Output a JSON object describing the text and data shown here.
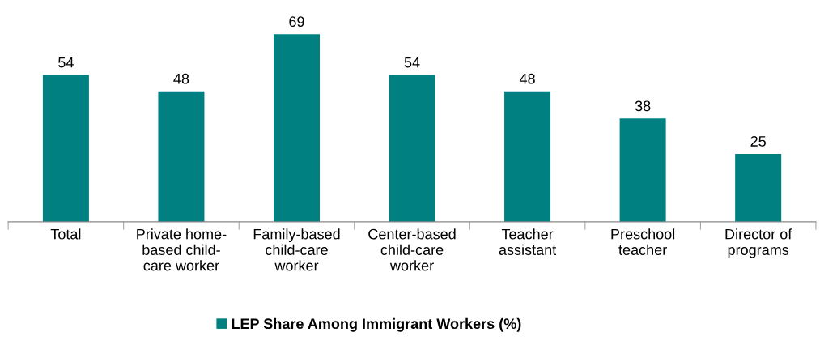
{
  "chart_data": {
    "type": "bar",
    "categories": [
      "Total",
      "Private home-\nbased child-\ncare worker",
      "Family-based\nchild-care\nworker",
      "Center-based\nchild-care\nworker",
      "Teacher\nassistant",
      "Preschool\nteacher",
      "Director of\nprograms"
    ],
    "series": [
      {
        "name": "LEP Share Among Immigrant Workers (%)",
        "color": "#008080",
        "values": [
          54,
          48,
          69,
          54,
          48,
          38,
          25
        ]
      }
    ],
    "data_labels": true,
    "grid": false,
    "legend": "bottom"
  }
}
